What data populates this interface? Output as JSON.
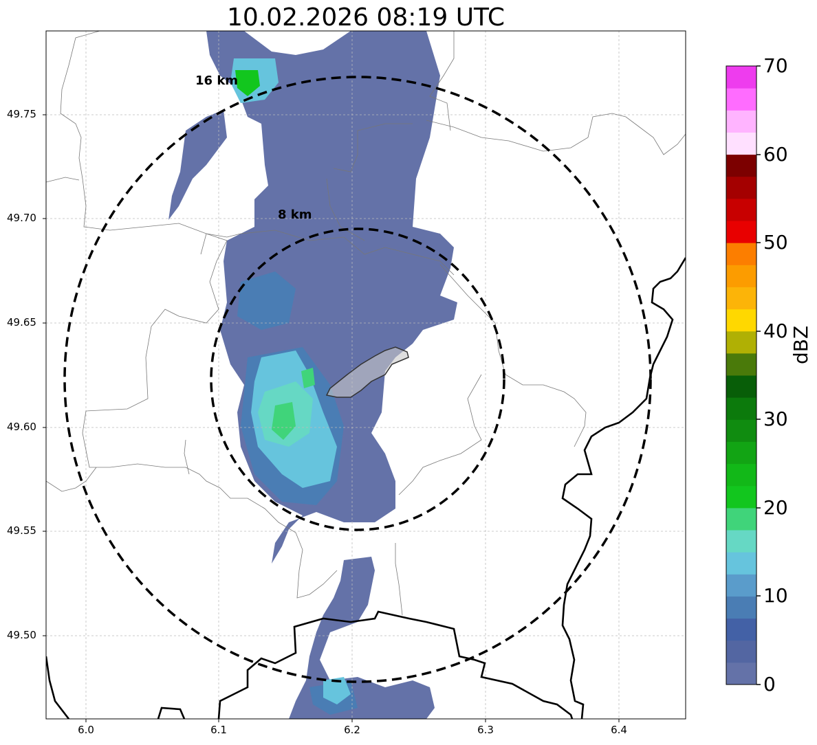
{
  "title": "10.02.2026 08:19 UTC",
  "map": {
    "lon_range": [
      5.97,
      6.45
    ],
    "lat_range": [
      49.46,
      49.79
    ],
    "x_ticks": [
      "6.0",
      "6.1",
      "6.2",
      "6.3",
      "6.4"
    ],
    "y_ticks": [
      "49.75",
      "49.70",
      "49.65",
      "49.60",
      "49.55",
      "49.50"
    ],
    "grid": true,
    "range_rings": [
      {
        "label": "8 km",
        "radius_km": 8
      },
      {
        "label": "16 km",
        "radius_km": 16
      }
    ],
    "ring_center_lonlat": [
      6.204,
      49.623
    ]
  },
  "colorbar": {
    "label": "dBZ",
    "ticks": [
      "0",
      "10",
      "20",
      "30",
      "40",
      "50",
      "60",
      "70"
    ],
    "min": 0,
    "max": 70,
    "step": 2.5,
    "colors": [
      "#6472a8",
      "#5366a2",
      "#4361a6",
      "#4a7db4",
      "#5a9ccb",
      "#66c4dd",
      "#66d8c4",
      "#40d47a",
      "#12c61e",
      "#12b818",
      "#12a414",
      "#108c10",
      "#0c7a0c",
      "#085e08",
      "#4a7a0a",
      "#b0b004",
      "#ffd800",
      "#fcb408",
      "#fc9c00",
      "#fc7e00",
      "#e80000",
      "#c80000",
      "#a40000",
      "#7c0000",
      "#ffe0ff",
      "#ffb4ff",
      "#ff6cff",
      "#ee3cee"
    ]
  }
}
